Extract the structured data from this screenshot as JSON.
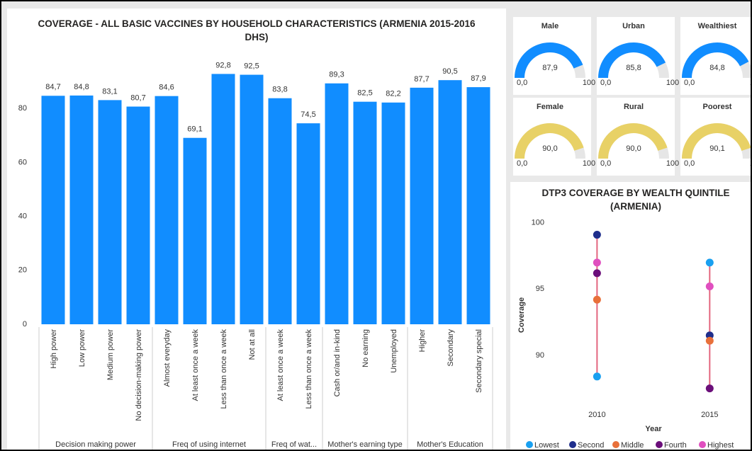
{
  "chart_data": [
    {
      "type": "bar",
      "title": "COVERAGE - ALL BASIC VACCINES BY HOUSEHOLD CHARACTERISTICS (ARMENIA 2015-2016 DHS)",
      "color": "#118dff",
      "ylim": [
        0,
        100
      ],
      "yticks": [
        0,
        20,
        40,
        60,
        80
      ],
      "groups": [
        {
          "name": "Decision making power",
          "categories": [
            "High power",
            "Low power",
            "Medium power",
            "No decision-making power"
          ],
          "values": [
            84.7,
            84.8,
            83.1,
            80.7
          ],
          "value_labels": [
            "84,7",
            "84,8",
            "83,1",
            "80,7"
          ]
        },
        {
          "name": "Freq of using internet",
          "categories": [
            "Almost everyday",
            "At least once a week",
            "Less than once a week",
            "Not at all"
          ],
          "values": [
            84.6,
            69.1,
            92.8,
            92.5
          ],
          "value_labels": [
            "84,6",
            "69,1",
            "92,8",
            "92,5"
          ]
        },
        {
          "name": "Freq of wat...",
          "categories": [
            "At least once a week",
            "Less than once a week"
          ],
          "values": [
            83.8,
            74.5
          ],
          "value_labels": [
            "83,8",
            "74,5"
          ]
        },
        {
          "name": "Mother's earning type",
          "categories": [
            "Cash or/and in-kind",
            "No earning",
            "Unemployed"
          ],
          "values": [
            89.3,
            82.5,
            82.2
          ],
          "value_labels": [
            "89,3",
            "82,5",
            "82,2"
          ]
        },
        {
          "name": "Mother's Education",
          "categories": [
            "Higher",
            "Secondary",
            "Secondary special"
          ],
          "values": [
            87.7,
            90.5,
            87.9
          ],
          "value_labels": [
            "87,7",
            "90,5",
            "87,9"
          ]
        }
      ]
    },
    {
      "type": "gauge",
      "gauges": [
        {
          "title": "Male",
          "value": 87.9,
          "value_label": "87,9",
          "min": {
            "value": 0,
            "label": "0,0"
          },
          "max": 100,
          "color": "#118dff"
        },
        {
          "title": "Urban",
          "value": 85.8,
          "value_label": "85,8",
          "min": {
            "value": 0,
            "label": "0,0"
          },
          "max": 100,
          "color": "#118dff"
        },
        {
          "title": "Wealthiest",
          "value": 84.8,
          "value_label": "84,8",
          "min": {
            "value": 0,
            "label": "0,0"
          },
          "max": 100,
          "color": "#118dff"
        },
        {
          "title": "Female",
          "value": 90.0,
          "value_label": "90,0",
          "min": {
            "value": 0,
            "label": "0,0"
          },
          "max": 100,
          "color": "#e8d166"
        },
        {
          "title": "Rural",
          "value": 90.0,
          "value_label": "90,0",
          "min": {
            "value": 0,
            "label": "0,0"
          },
          "max": 100,
          "color": "#e8d166"
        },
        {
          "title": "Poorest",
          "value": 90.1,
          "value_label": "90,1",
          "min": {
            "value": 0,
            "label": "0,0"
          },
          "max": 100,
          "color": "#e8d166"
        }
      ]
    },
    {
      "type": "scatter",
      "title": "DTP3 COVERAGE BY WEALTH QUINTILE (ARMENIA)",
      "x_label": "Year",
      "y_label": "Coverage",
      "x": [
        2010,
        2015
      ],
      "xlim": [
        2007,
        2016.5
      ],
      "xticks": [
        2010,
        2015
      ],
      "ylim": [
        87,
        101
      ],
      "yticks": [
        90,
        95,
        100
      ],
      "range_line_color": "#e3667f",
      "series": [
        {
          "name": "Lowest",
          "color": "#1aa0f0",
          "values": [
            88.4,
            97.0
          ]
        },
        {
          "name": "Second",
          "color": "#1f2e8c",
          "values": [
            99.1,
            91.5
          ]
        },
        {
          "name": "Middle",
          "color": "#e8703a",
          "values": [
            94.2,
            91.1
          ]
        },
        {
          "name": "Fourth",
          "color": "#6b0f7a",
          "values": [
            96.2,
            87.5
          ]
        },
        {
          "name": "Highest",
          "color": "#e04fbf",
          "values": [
            97.0,
            95.2
          ]
        }
      ]
    }
  ]
}
